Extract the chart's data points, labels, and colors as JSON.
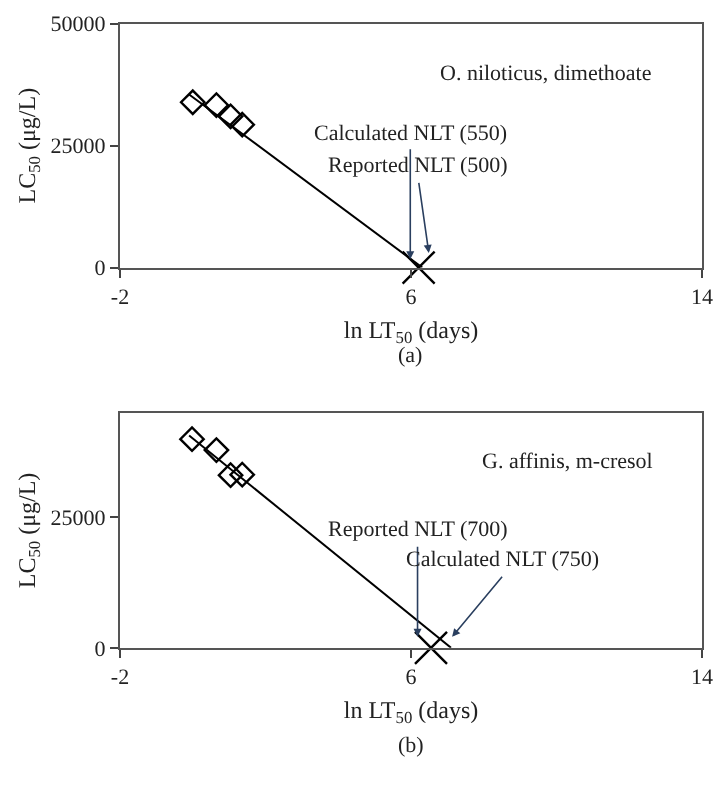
{
  "chart_data": [
    {
      "type": "scatter",
      "xlabel": "ln LT$_{50}$ (days)",
      "ylabel": "LC$_{50}$ (μg/L)",
      "xlim": [
        -2,
        14
      ],
      "xticks": [
        -2,
        6,
        14
      ],
      "ylim": [
        0,
        50000
      ],
      "yticks": [
        0,
        25000,
        50000
      ],
      "series": [
        {
          "marker": "diamond",
          "color": "#000000",
          "x": [
            0.0,
            0.65,
            1.04,
            1.36
          ],
          "values": [
            33900,
            33300,
            31000,
            29300
          ]
        },
        {
          "type": "line",
          "marker": "none",
          "color": "#000000",
          "x": [
            -0.1,
            6.31
          ],
          "values": [
            35500,
            0
          ]
        },
        {
          "marker": "cross",
          "color": "#000000",
          "x": [
            6.21
          ],
          "values": [
            0
          ]
        }
      ],
      "annotations": [
        "O. niloticus, dimethoate",
        {
          "text": "Calculated NLT (550)",
          "x": 5.98,
          "y": 1700
        },
        {
          "text": "Reported NLT (500)",
          "x": 6.49,
          "y": 3000
        },
        "(a)"
      ]
    },
    {
      "type": "scatter",
      "xlabel": "ln LT$_{50}$ (days)",
      "ylabel": "LC$_{50}$ (μg/L)",
      "xlim": [
        -2,
        14
      ],
      "xticks": [
        -2,
        6,
        14
      ],
      "ylim": [
        0,
        45000
      ],
      "yticks": [
        0,
        25000
      ],
      "series": [
        {
          "marker": "diamond",
          "color": "#000000",
          "x": [
            -0.02,
            0.65,
            1.04,
            1.36
          ],
          "values": [
            40000,
            37900,
            33100,
            33200
          ]
        },
        {
          "type": "line",
          "marker": "none",
          "color": "#000000",
          "x": [
            -0.1,
            7.1
          ],
          "values": [
            40700,
            0
          ]
        },
        {
          "marker": "cross",
          "color": "#000000",
          "x": [
            6.55
          ],
          "values": [
            0
          ]
        }
      ],
      "annotations": [
        "G. affinis, m-cresol",
        {
          "text": "Reported NLT (700)",
          "x": 6.18,
          "y": 2100
        },
        {
          "text": "Calculated NLT (750)",
          "x": 7.13,
          "y": 2100
        },
        "(b)"
      ]
    }
  ]
}
